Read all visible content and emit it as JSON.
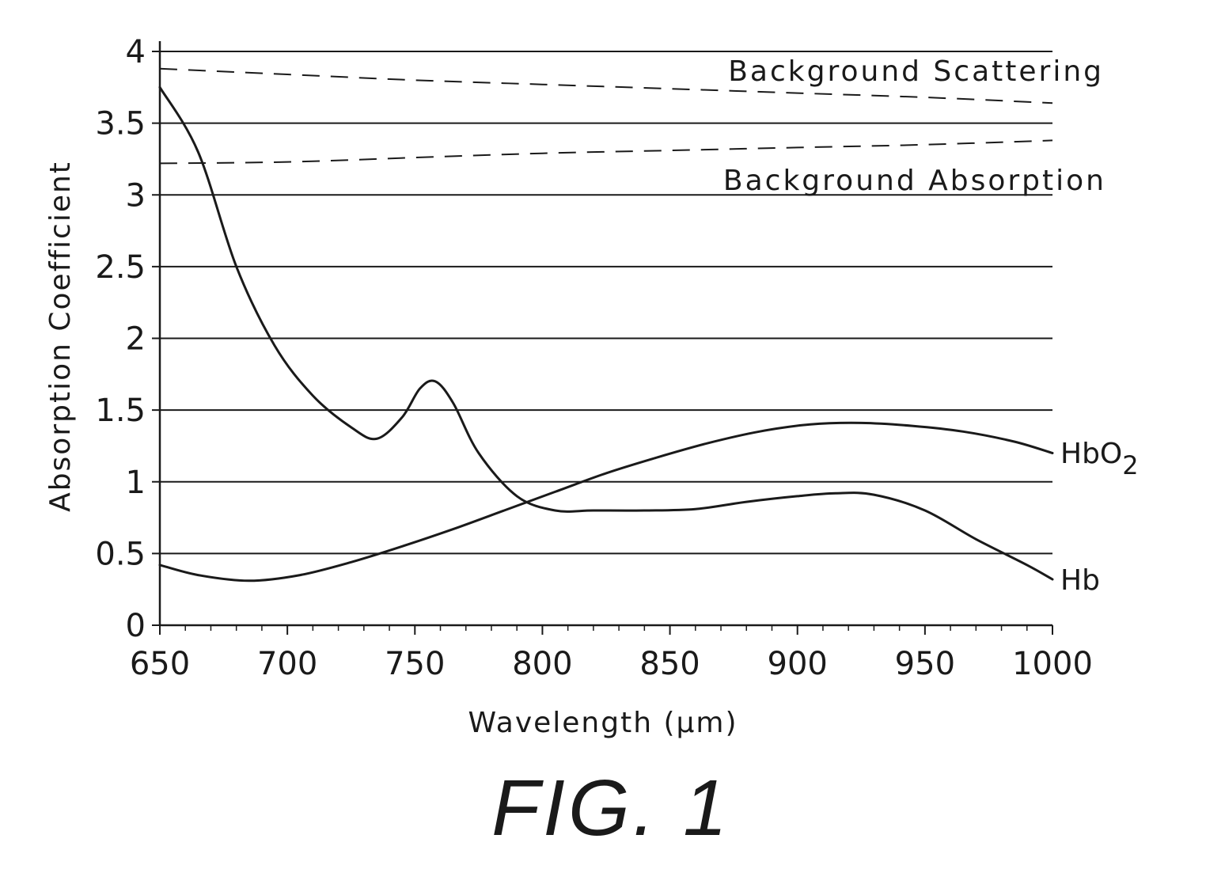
{
  "chart_data": {
    "type": "line",
    "xlabel": "Wavelength (µm)",
    "ylabel": "Absorption Coefficient",
    "xlim": [
      650,
      1000
    ],
    "ylim": [
      0,
      4
    ],
    "x_ticks": [
      650,
      700,
      750,
      800,
      850,
      900,
      950,
      1000
    ],
    "y_ticks": [
      0,
      0.5,
      1,
      1.5,
      2,
      2.5,
      3,
      3.5,
      4
    ],
    "y_tick_labels": [
      "0",
      "0.5",
      "1",
      "1.5",
      "2",
      "2.5",
      "3",
      "3.5",
      "4"
    ],
    "grid": "horizontal",
    "series": [
      {
        "name": "Hb",
        "style": "solid",
        "x": [
          650,
          665,
          680,
          695,
          710,
          725,
          735,
          745,
          752,
          758,
          765,
          775,
          790,
          805,
          820,
          840,
          860,
          880,
          900,
          915,
          930,
          950,
          970,
          990,
          1000
        ],
        "y": [
          3.75,
          3.3,
          2.5,
          1.95,
          1.6,
          1.38,
          1.3,
          1.45,
          1.65,
          1.7,
          1.55,
          1.2,
          0.9,
          0.8,
          0.8,
          0.8,
          0.81,
          0.86,
          0.9,
          0.92,
          0.91,
          0.8,
          0.6,
          0.42,
          0.32
        ]
      },
      {
        "name": "HbO2",
        "style": "solid",
        "x": [
          650,
          665,
          685,
          705,
          725,
          745,
          765,
          785,
          805,
          825,
          845,
          865,
          885,
          905,
          925,
          945,
          965,
          985,
          1000
        ],
        "y": [
          0.42,
          0.35,
          0.31,
          0.35,
          0.44,
          0.55,
          0.67,
          0.8,
          0.93,
          1.06,
          1.17,
          1.27,
          1.35,
          1.4,
          1.41,
          1.39,
          1.35,
          1.28,
          1.2
        ]
      },
      {
        "name": "Background Scattering",
        "style": "dashed",
        "x": [
          650,
          700,
          750,
          800,
          850,
          900,
          950,
          1000
        ],
        "y": [
          3.88,
          3.84,
          3.8,
          3.77,
          3.74,
          3.71,
          3.68,
          3.64
        ]
      },
      {
        "name": "Background Absorption",
        "style": "dashed",
        "x": [
          650,
          700,
          750,
          800,
          850,
          900,
          950,
          1000
        ],
        "y": [
          3.22,
          3.23,
          3.26,
          3.29,
          3.31,
          3.33,
          3.35,
          3.38
        ]
      }
    ],
    "annotations": {
      "hb": "Hb",
      "hbo2_main": "HbO",
      "hbo2_sub": "2",
      "scattering": "Background Scattering",
      "absorption": "Background Absorption"
    }
  },
  "caption": "FIG. 1"
}
